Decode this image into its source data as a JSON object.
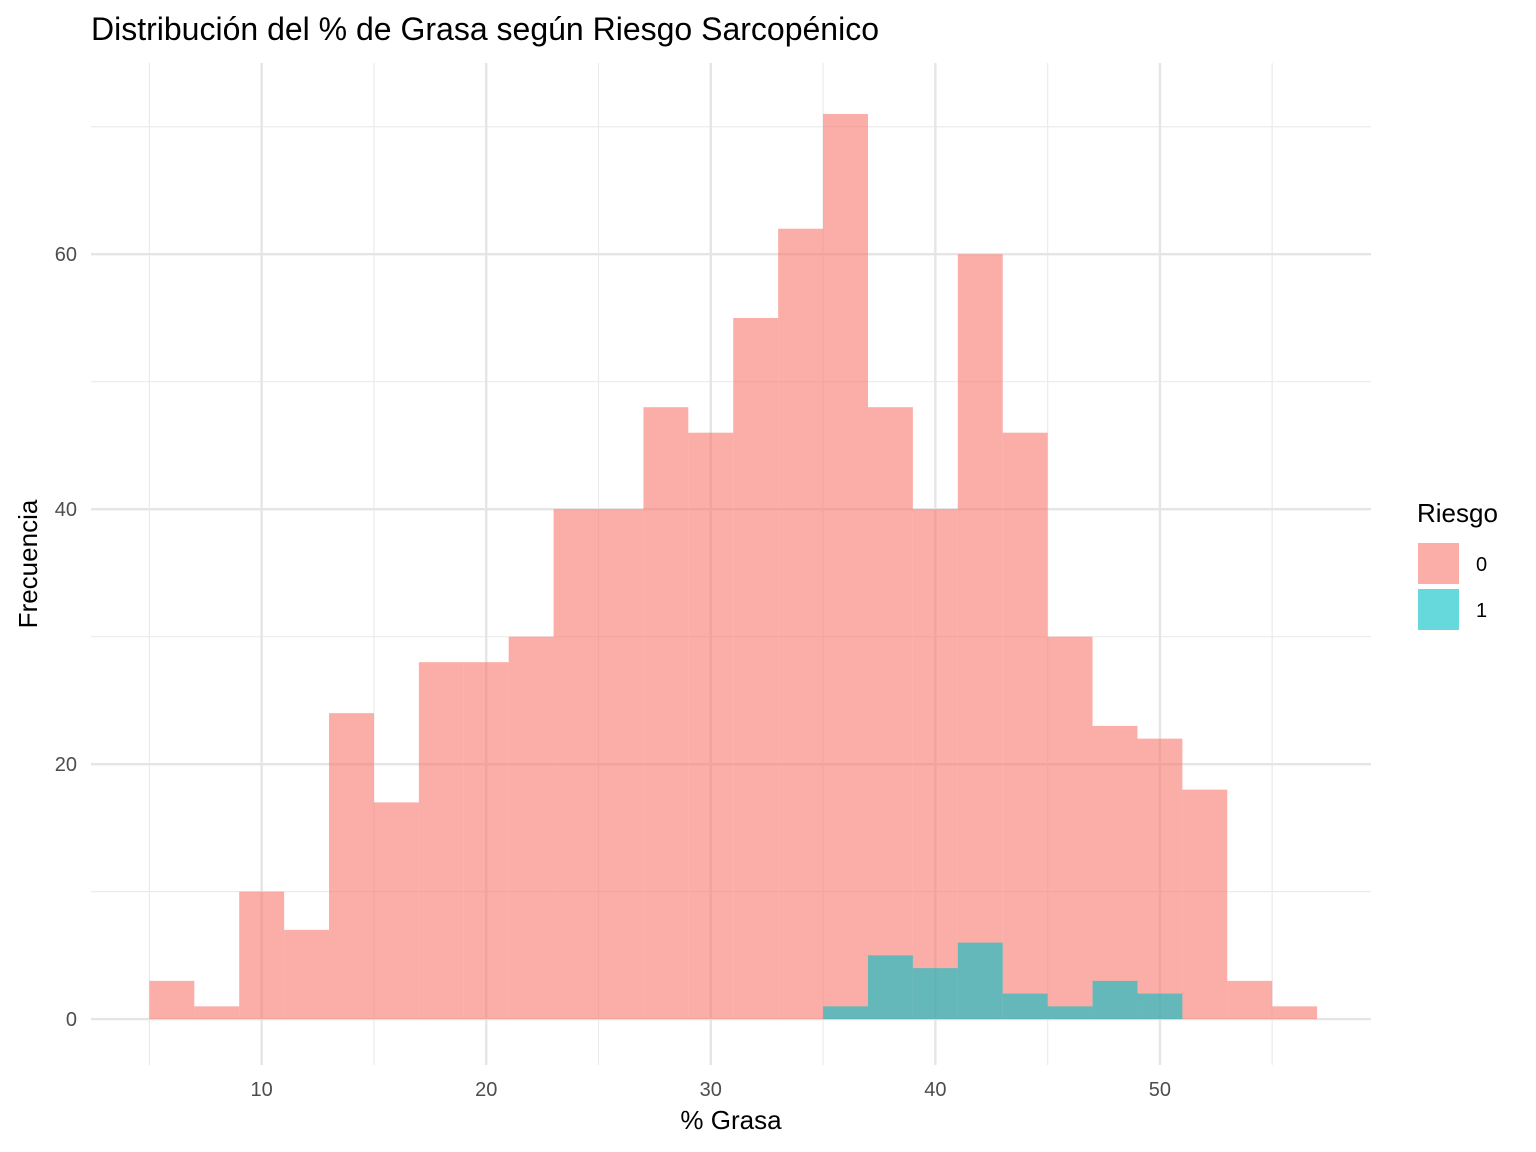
{
  "chart_data": {
    "type": "bar",
    "subtype": "histogram-overlay",
    "title": "Distribución del % de Grasa según Riesgo Sarcopénico",
    "xlabel": "% Grasa",
    "ylabel": "Frecuencia",
    "xlim": [
      2.4,
      59.4
    ],
    "ylim": [
      -3.6,
      75
    ],
    "x_ticks": [
      10,
      20,
      30,
      40,
      50
    ],
    "x_tick_labels": [
      "10",
      "20",
      "30",
      "40",
      "50"
    ],
    "y_ticks": [
      0,
      20,
      40,
      60
    ],
    "y_tick_labels": [
      "0",
      "20",
      "40",
      "60"
    ],
    "bin_width": 2,
    "bin_start": 5,
    "grid": true,
    "legend": {
      "title": "Riesgo",
      "position": "right",
      "entries": [
        {
          "label": "0",
          "color": "#F8766D"
        },
        {
          "label": "1",
          "color": "#00BFC4"
        }
      ]
    },
    "fill_opacity": 0.6,
    "series": [
      {
        "name": "0",
        "color": "#F8766D",
        "values": [
          3,
          1,
          10,
          7,
          24,
          17,
          28,
          28,
          30,
          40,
          40,
          48,
          46,
          55,
          62,
          71,
          48,
          40,
          60,
          46,
          30,
          23,
          22,
          18,
          3,
          1
        ]
      },
      {
        "name": "1",
        "color": "#00BFC4",
        "values": [
          0,
          0,
          0,
          0,
          0,
          0,
          0,
          0,
          0,
          0,
          0,
          0,
          0,
          0,
          0,
          1,
          5,
          4,
          6,
          2,
          1,
          3,
          2,
          0,
          0,
          0
        ]
      }
    ]
  }
}
